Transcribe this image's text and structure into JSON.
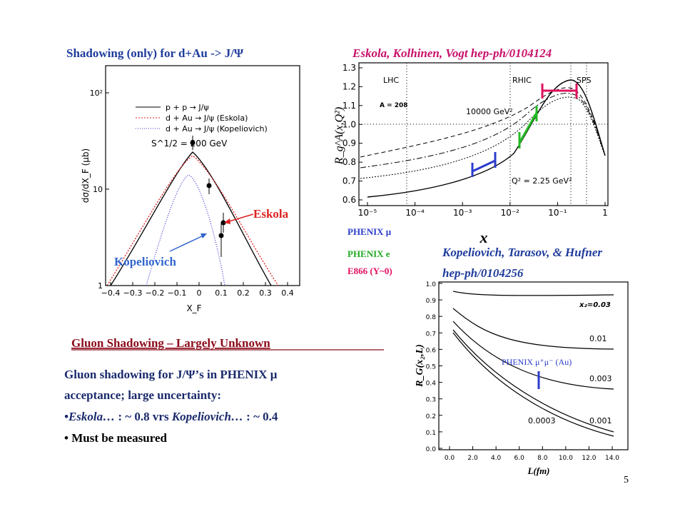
{
  "slide": {
    "title_left": "Shadowing (only) for d+Au -> J/Ψ",
    "title_right": "Eskola, Kolhinen, Vogt hep-ph/0104124",
    "heading": "Gluon Shadowing – Largely Unknown",
    "body": {
      "line1": "Gluon shadowing for J/Ψ’s in PHENIX μ",
      "line2": "acceptance; large uncertainty:",
      "line3": [
        "•Eskola… ",
        ": ~ 0.8 vrs ",
        "Kopeliovich… ",
        ": ~ 0.4"
      ],
      "line4": "• Must be measured"
    },
    "page_number": "5"
  },
  "plot_left": {
    "legend": [
      "p + p → J/ψ",
      "d + Au → J/ψ (Eskola)",
      "d + Au → J/ψ (Kopeliovich)"
    ],
    "energy": "S^1/2 = 200 GeV",
    "x_label": "X_F",
    "y_label": "dσ/dX_F (μb)",
    "x_ticks": [
      "−0.4",
      "−0.3",
      "−0.2",
      "−0.1",
      "0",
      "0.1",
      "0.2",
      "0.3",
      "0.4"
    ],
    "y_ticks": [
      "10²",
      "10",
      "1"
    ],
    "annotations": [
      "Eskola",
      "Kopeliovich"
    ]
  },
  "plot_right_top": {
    "labels": [
      "LHC",
      "RHIC",
      "SPS",
      "A = 208",
      "10000 GeV²",
      "Q² = 2.25 GeV²"
    ],
    "x_label": "x",
    "y_label": "R_g^A(x,Q²)",
    "x_ticks": [
      "10⁻⁵",
      "10⁻⁴",
      "10⁻³",
      "10⁻²",
      "10⁻¹",
      "1"
    ],
    "y_ticks": [
      "1.3",
      "1.2",
      "1.1",
      "1.0",
      "0.9",
      "0.8",
      "0.7",
      "0.6"
    ],
    "legend": [
      "PHENIX μ",
      "PHENIX e",
      "E866 (Y~0)"
    ]
  },
  "plot_right_bottom": {
    "title": [
      "Kopeliovich, Tarasov, & Hufner",
      "hep-ph/0104256"
    ],
    "curve_labels": [
      "x₂=0.03",
      "0.01",
      "0.003",
      "0.0003",
      "0.001"
    ],
    "annotation": "PHENIX μ⁺μ⁻ (Au)",
    "x_label": "L(fm)",
    "y_label": "R_G(x₂,L)",
    "x_ticks": [
      "0.0",
      "2.0",
      "4.0",
      "6.0",
      "8.0",
      "10.0",
      "12.0",
      "14.0"
    ],
    "y_ticks": [
      "1.0",
      "0.9",
      "0.8",
      "0.7",
      "0.6",
      "0.5",
      "0.4",
      "0.3",
      "0.2",
      "0.1",
      "0.0"
    ]
  }
}
